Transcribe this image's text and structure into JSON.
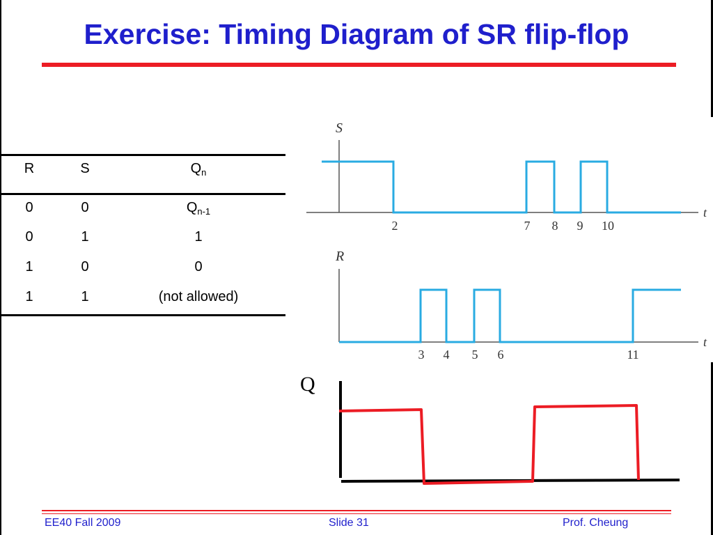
{
  "title": "Exercise: Timing Diagram of SR flip-flop",
  "table": {
    "headers": {
      "r": "R",
      "s": "S",
      "q": "Q",
      "q_sub": "n"
    },
    "rows": [
      {
        "r": "0",
        "s": "0",
        "q": "Q",
        "q_sub": "n-1"
      },
      {
        "r": "0",
        "s": "1",
        "q": "1",
        "q_sub": ""
      },
      {
        "r": "1",
        "s": "0",
        "q": "0",
        "q_sub": ""
      },
      {
        "r": "1",
        "s": "1",
        "q": "(not allowed)",
        "q_sub": ""
      }
    ]
  },
  "timing": {
    "s_label": "S",
    "r_label": "R",
    "q_label": "Q",
    "t_label": "t",
    "s_ticks": [
      "2",
      "7",
      "8",
      "9",
      "10"
    ],
    "r_ticks": [
      "3",
      "4",
      "5",
      "6",
      "11"
    ],
    "s_signal_color": "#29abe2",
    "r_signal_color": "#29abe2",
    "q_signal_color": "#ec1c24"
  },
  "footer": {
    "left": "EE40 Fall 2009",
    "center": "Slide 31",
    "right": "Prof. Cheung"
  },
  "colors": {
    "title": "#1f1fcc",
    "accent_rule": "#ec1c24",
    "footer_text": "#1f1fcc"
  }
}
